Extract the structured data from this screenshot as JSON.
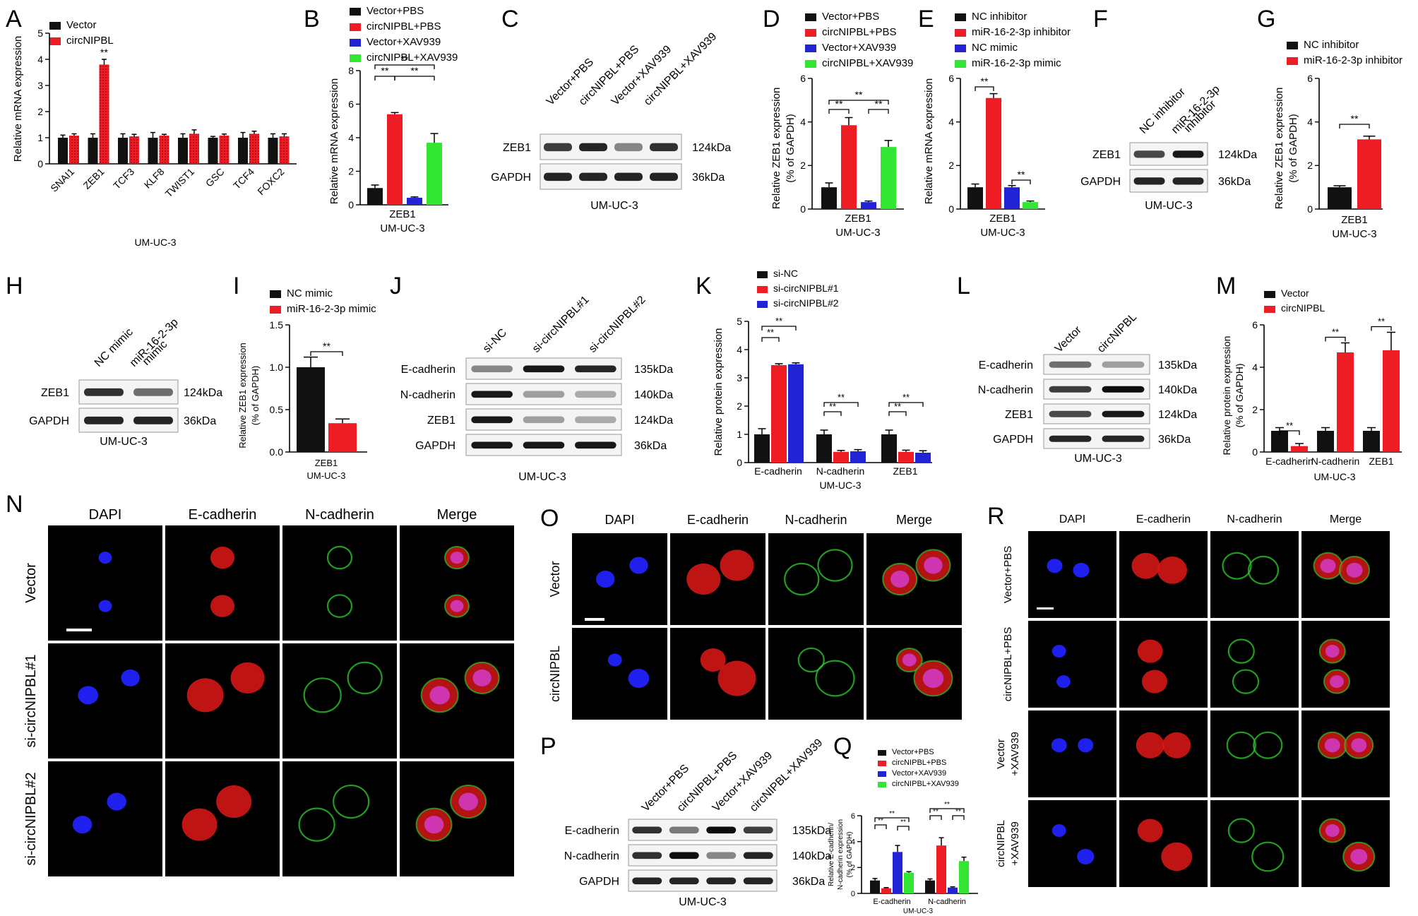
{
  "colors": {
    "black": "#111111",
    "red": "#ee1c24",
    "blue": "#2323d6",
    "green": "#33e633",
    "fluor_red": "#e01818",
    "fluor_blue": "#2020ee",
    "fluor_green": "#2bc42b",
    "merge_mix": "#d23ac0"
  },
  "panels": {
    "A": {
      "letter": "A",
      "legend": [
        "Vector",
        "circNIPBL"
      ],
      "ylabel": "Relative mRNA expression",
      "xlabel": "UM-UC-3",
      "ylim": [
        0,
        5
      ],
      "yticks": [
        "0",
        "1",
        "2",
        "3",
        "4",
        "5"
      ],
      "sig": [
        "**"
      ]
    },
    "B": {
      "letter": "B",
      "legend": [
        "Vector+PBS",
        "circNIPBL+PBS",
        "Vector+XAV939",
        "circNIPBL+XAV939"
      ],
      "ylabel": "Relative mRNA expression",
      "xtick": "ZEB1",
      "xlabel": "UM-UC-3",
      "ylim": [
        0,
        8
      ],
      "yticks": [
        "0",
        "2",
        "4",
        "6",
        "8"
      ],
      "sig": [
        "**",
        "**",
        "**"
      ]
    },
    "C": {
      "letter": "C",
      "lanes": [
        "Vector+PBS",
        "circNIPBL+PBS",
        "Vector+XAV939",
        "circNIPBL+XAV939"
      ],
      "rows": [
        "ZEB1",
        "GAPDH"
      ],
      "sizes": [
        "124kDa",
        "36kDa"
      ],
      "caption": "UM-UC-3"
    },
    "D": {
      "letter": "D",
      "legend": [
        "Vector+PBS",
        "circNIPBL+PBS",
        "Vector+XAV939",
        "circNIPBL+XAV939"
      ],
      "ylabel": "Relative ZEB1 expression",
      "ylabel2": "(% of GAPDH)",
      "xtick": "ZEB1",
      "xlabel": "UM-UC-3",
      "ylim": [
        0,
        6
      ],
      "yticks": [
        "0",
        "2",
        "4",
        "6"
      ],
      "sig": [
        "**",
        "**",
        "**"
      ]
    },
    "E": {
      "letter": "E",
      "legend": [
        "NC inhibitor",
        "miR-16-2-3p inhibitor",
        "NC mimic",
        "miR-16-2-3p mimic"
      ],
      "ylabel": "Relative mRNA expression",
      "xtick": "ZEB1",
      "xlabel": "UM-UC-3",
      "ylim": [
        0,
        6
      ],
      "yticks": [
        "0",
        "2",
        "4",
        "6"
      ],
      "sig": [
        "**",
        "**"
      ]
    },
    "F": {
      "letter": "F",
      "lanes": [
        "NC inhibitor",
        "miR-16-2-3p inhibitor"
      ],
      "lane2_lines": [
        "miR-16-2-3p",
        "inhibitor"
      ],
      "rows": [
        "ZEB1",
        "GAPDH"
      ],
      "sizes": [
        "124kDa",
        "36kDa"
      ],
      "caption": "UM-UC-3"
    },
    "G": {
      "letter": "G",
      "legend": [
        "NC inhibitor",
        "miR-16-2-3p inhibitor"
      ],
      "ylabel": "Relative ZEB1 expression",
      "ylabel2": "(% of GAPDH)",
      "xtick": "ZEB1",
      "xlabel": "UM-UC-3",
      "ylim": [
        0,
        6
      ],
      "yticks": [
        "0",
        "2",
        "4",
        "6"
      ],
      "sig": [
        "**"
      ]
    },
    "H": {
      "letter": "H",
      "lanes": [
        "NC mimic",
        "miR-16-2-3p mimic"
      ],
      "lane2_lines": [
        "miR-16-2-3p",
        "mimic"
      ],
      "rows": [
        "ZEB1",
        "GAPDH"
      ],
      "sizes": [
        "124kDa",
        "36kDa"
      ],
      "caption": "UM-UC-3"
    },
    "I": {
      "letter": "I",
      "legend": [
        "NC mimic",
        "miR-16-2-3p mimic"
      ],
      "ylabel": "Relative ZEB1 expression",
      "ylabel2": "(% of GAPDH)",
      "xtick": "ZEB1",
      "xlabel": "UM-UC-3",
      "ylim": [
        0,
        1.5
      ],
      "yticks": [
        "0.0",
        "0.5",
        "1.0",
        "1.5"
      ],
      "sig": [
        "**"
      ]
    },
    "J": {
      "letter": "J",
      "lanes": [
        "si-NC",
        "si-circNIPBL#1",
        "si-circNIPBL#2"
      ],
      "rows": [
        "E-cadherin",
        "N-cadherin",
        "ZEB1",
        "GAPDH"
      ],
      "sizes": [
        "135kDa",
        "140kDa",
        "124kDa",
        "36kDa"
      ],
      "caption": "UM-UC-3"
    },
    "K": {
      "letter": "K",
      "legend": [
        "si-NC",
        "si-circNIPBL#1",
        "si-circNIPBL#2"
      ],
      "ylabel": "Relative protein expression",
      "xlabel": "UM-UC-3",
      "ylim": [
        0,
        5
      ],
      "yticks": [
        "0",
        "1",
        "2",
        "3",
        "4",
        "5"
      ],
      "sig": [
        "**",
        "**",
        "**",
        "**",
        "**",
        "**"
      ]
    },
    "L": {
      "letter": "L",
      "lanes": [
        "Vector",
        "circNIPBL"
      ],
      "rows": [
        "E-cadherin",
        "N-cadherin",
        "ZEB1",
        "GAPDH"
      ],
      "sizes": [
        "135kDa",
        "140kDa",
        "124kDa",
        "36kDa"
      ],
      "caption": "UM-UC-3"
    },
    "M": {
      "letter": "M",
      "legend": [
        "Vector",
        "circNIPBL"
      ],
      "ylabel": "Relative protein expression",
      "ylabel2": "(% of GAPDH)",
      "xlabel": "UM-UC-3",
      "ylim": [
        0,
        6
      ],
      "yticks": [
        "0",
        "2",
        "4",
        "6"
      ],
      "sig": [
        "**",
        "**",
        "**"
      ]
    },
    "N": {
      "letter": "N",
      "cols": [
        "DAPI",
        "E-cadherin",
        "N-cadherin",
        "Merge"
      ],
      "rows": [
        "Vector",
        "si-circNIPBL#1",
        "si-circNIPBL#2"
      ]
    },
    "O": {
      "letter": "O",
      "cols": [
        "DAPI",
        "E-cadherin",
        "N-cadherin",
        "Merge"
      ],
      "rows": [
        "Vector",
        "circNIPBL"
      ]
    },
    "P": {
      "letter": "P",
      "lanes": [
        "Vector+PBS",
        "circNIPBL+PBS",
        "Vector+XAV939",
        "circNIPBL+XAV939"
      ],
      "rows": [
        "E-cadherin",
        "N-cadherin",
        "GAPDH"
      ],
      "sizes": [
        "135kDa",
        "140kDa",
        "36kDa"
      ],
      "caption": "UM-UC-3"
    },
    "Q": {
      "letter": "Q",
      "legend": [
        "Vector+PBS",
        "circNIPBL+PBS",
        "Vector+XAV939",
        "circNIPBL+XAV939"
      ],
      "ylabel": "Relative E-cadherin/",
      "ylabel2": "N-cadherin expression",
      "ylabel3": "(% of GAPDH)",
      "xlabel": "UM-UC-3",
      "ylim": [
        0,
        6
      ],
      "yticks": [
        "0",
        "2",
        "4",
        "6"
      ],
      "sig": [
        "**",
        "**",
        "**",
        "**",
        "**",
        "**"
      ]
    },
    "R": {
      "letter": "R",
      "cols": [
        "DAPI",
        "E-cadherin",
        "N-cadherin",
        "Merge"
      ],
      "rows": [
        [
          "Vector+PBS"
        ],
        [
          "circNIPBL+PBS"
        ],
        [
          "Vector",
          "+XAV939"
        ],
        [
          "circNIPBL",
          "+XAV939"
        ]
      ]
    }
  },
  "chart_data": [
    {
      "panel": "A",
      "type": "bar",
      "categories": [
        "SNAI1",
        "ZEB1",
        "TCF3",
        "KLF8",
        "TWIST1",
        "GSC",
        "TCF4",
        "FOXC2"
      ],
      "series": [
        {
          "name": "Vector",
          "values": [
            1.0,
            1.0,
            1.0,
            1.0,
            1.0,
            1.0,
            1.0,
            1.0
          ],
          "errors": [
            0.1,
            0.15,
            0.15,
            0.2,
            0.15,
            0.05,
            0.2,
            0.15
          ]
        },
        {
          "name": "circNIPBL",
          "values": [
            1.08,
            3.8,
            1.05,
            1.08,
            1.15,
            1.08,
            1.15,
            1.05
          ],
          "errors": [
            0.07,
            0.2,
            0.08,
            0.05,
            0.15,
            0.06,
            0.1,
            0.1
          ]
        }
      ],
      "ylim": [
        0,
        5
      ]
    },
    {
      "panel": "B",
      "type": "bar",
      "categories": [
        "ZEB1"
      ],
      "series": [
        {
          "name": "Vector+PBS",
          "values": [
            1.0
          ],
          "errors": [
            0.18
          ]
        },
        {
          "name": "circNIPBL+PBS",
          "values": [
            5.4
          ],
          "errors": [
            0.1
          ]
        },
        {
          "name": "Vector+XAV939",
          "values": [
            0.42
          ],
          "errors": [
            0.05
          ]
        },
        {
          "name": "circNIPBL+XAV939",
          "values": [
            3.7
          ],
          "errors": [
            0.55
          ]
        }
      ],
      "ylim": [
        0,
        8
      ]
    },
    {
      "panel": "D",
      "type": "bar",
      "categories": [
        "ZEB1"
      ],
      "series": [
        {
          "name": "Vector+PBS",
          "values": [
            1.0
          ],
          "errors": [
            0.2
          ]
        },
        {
          "name": "circNIPBL+PBS",
          "values": [
            3.85
          ],
          "errors": [
            0.35
          ]
        },
        {
          "name": "Vector+XAV939",
          "values": [
            0.32
          ],
          "errors": [
            0.05
          ]
        },
        {
          "name": "circNIPBL+XAV939",
          "values": [
            2.85
          ],
          "errors": [
            0.3
          ]
        }
      ],
      "ylim": [
        0,
        6
      ]
    },
    {
      "panel": "E",
      "type": "bar",
      "categories": [
        "ZEB1"
      ],
      "series": [
        {
          "name": "NC inhibitor",
          "values": [
            1.0
          ],
          "errors": [
            0.15
          ]
        },
        {
          "name": "miR-16-2-3p inhibitor",
          "values": [
            5.1
          ],
          "errors": [
            0.2
          ]
        },
        {
          "name": "NC mimic",
          "values": [
            1.0
          ],
          "errors": [
            0.08
          ]
        },
        {
          "name": "miR-16-2-3p mimic",
          "values": [
            0.32
          ],
          "errors": [
            0.05
          ]
        }
      ],
      "ylim": [
        0,
        6
      ]
    },
    {
      "panel": "G",
      "type": "bar",
      "categories": [
        "ZEB1"
      ],
      "series": [
        {
          "name": "NC inhibitor",
          "values": [
            1.0
          ],
          "errors": [
            0.07
          ]
        },
        {
          "name": "miR-16-2-3p inhibitor",
          "values": [
            3.2
          ],
          "errors": [
            0.15
          ]
        }
      ],
      "ylim": [
        0,
        6
      ]
    },
    {
      "panel": "I",
      "type": "bar",
      "categories": [
        "ZEB1"
      ],
      "series": [
        {
          "name": "NC mimic",
          "values": [
            1.0
          ],
          "errors": [
            0.12
          ]
        },
        {
          "name": "miR-16-2-3p mimic",
          "values": [
            0.34
          ],
          "errors": [
            0.05
          ]
        }
      ],
      "ylim": [
        0,
        1.5
      ]
    },
    {
      "panel": "K",
      "type": "bar",
      "categories": [
        "E-cadherin",
        "N-cadherin",
        "ZEB1"
      ],
      "series": [
        {
          "name": "si-NC",
          "values": [
            1.0,
            1.0,
            1.0
          ],
          "errors": [
            0.2,
            0.15,
            0.15
          ]
        },
        {
          "name": "si-circNIPBL#1",
          "values": [
            3.45,
            0.38,
            0.38
          ],
          "errors": [
            0.05,
            0.05,
            0.06
          ]
        },
        {
          "name": "si-circNIPBL#2",
          "values": [
            3.48,
            0.4,
            0.35
          ],
          "errors": [
            0.05,
            0.06,
            0.07
          ]
        }
      ],
      "ylim": [
        0,
        5
      ]
    },
    {
      "panel": "M",
      "type": "bar",
      "categories": [
        "E-cadherin",
        "N-cadherin",
        "ZEB1"
      ],
      "series": [
        {
          "name": "Vector",
          "values": [
            1.0,
            1.0,
            1.0
          ],
          "errors": [
            0.15,
            0.15,
            0.15
          ]
        },
        {
          "name": "circNIPBL",
          "values": [
            0.28,
            4.7,
            4.8
          ],
          "errors": [
            0.12,
            0.45,
            0.85
          ]
        }
      ],
      "ylim": [
        0,
        6
      ]
    },
    {
      "panel": "Q",
      "type": "bar",
      "categories": [
        "E-cadherin",
        "N-cadherin"
      ],
      "series": [
        {
          "name": "Vector+PBS",
          "values": [
            1.0,
            1.0
          ],
          "errors": [
            0.15,
            0.12
          ]
        },
        {
          "name": "circNIPBL+PBS",
          "values": [
            0.4,
            3.7
          ],
          "errors": [
            0.05,
            0.6
          ]
        },
        {
          "name": "Vector+XAV939",
          "values": [
            3.2,
            0.45
          ],
          "errors": [
            0.5,
            0.06
          ]
        },
        {
          "name": "circNIPBL+XAV939",
          "values": [
            1.6,
            2.5
          ],
          "errors": [
            0.08,
            0.3
          ]
        }
      ],
      "ylim": [
        0,
        6
      ]
    }
  ]
}
